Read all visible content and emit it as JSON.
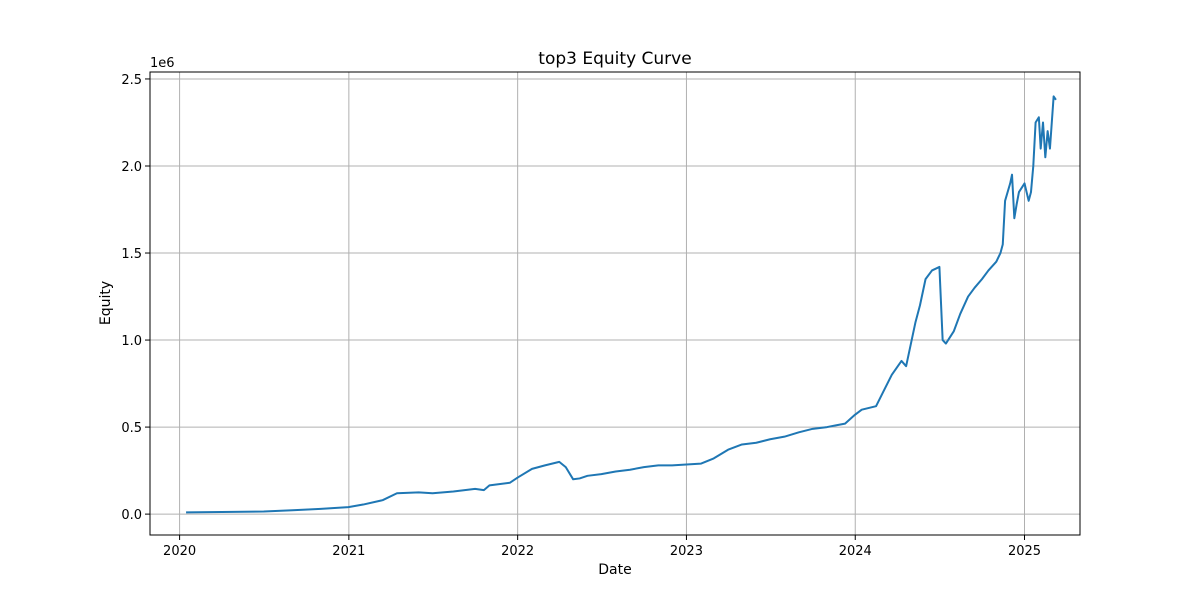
{
  "chart_data": {
    "type": "line",
    "title": "top3 Equity Curve",
    "xlabel": "Date",
    "ylabel": "Equity",
    "y_offset_label": "1e6",
    "x_ticks": [
      "2020",
      "2021",
      "2022",
      "2023",
      "2024",
      "2025"
    ],
    "y_ticks": [
      "0.0",
      "0.5",
      "1.0",
      "1.5",
      "2.0",
      "2.5"
    ],
    "xlim": [
      "2019-10-29",
      "2025-05-01"
    ],
    "ylim": [
      -120000,
      2540000
    ],
    "grid": true,
    "line_color": "#1f77b4",
    "series": [
      {
        "x": [
          "2020-01-15",
          "2020-04-01",
          "2020-07-01",
          "2020-09-01",
          "2020-11-01",
          "2020-12-31",
          "2021-02-01",
          "2021-03-15",
          "2021-04-15",
          "2021-06-01",
          "2021-07-01",
          "2021-08-15",
          "2021-10-01",
          "2021-10-20",
          "2021-11-01",
          "2021-12-15",
          "2022-01-01",
          "2022-02-01",
          "2022-03-01",
          "2022-04-01",
          "2022-04-15",
          "2022-05-01",
          "2022-05-15",
          "2022-06-01",
          "2022-07-01",
          "2022-08-01",
          "2022-09-01",
          "2022-10-01",
          "2022-11-01",
          "2022-12-01",
          "2023-01-01",
          "2023-02-01",
          "2023-03-01",
          "2023-04-01",
          "2023-05-01",
          "2023-06-01",
          "2023-07-01",
          "2023-08-01",
          "2023-09-01",
          "2023-10-01",
          "2023-11-01",
          "2023-11-20",
          "2023-12-10",
          "2023-12-31",
          "2024-01-15",
          "2024-02-15",
          "2024-03-01",
          "2024-03-20",
          "2024-04-10",
          "2024-04-20",
          "2024-05-10",
          "2024-05-20",
          "2024-06-01",
          "2024-06-15",
          "2024-07-01",
          "2024-07-08",
          "2024-07-15",
          "2024-08-01",
          "2024-08-15",
          "2024-09-01",
          "2024-09-15",
          "2024-10-01",
          "2024-10-15",
          "2024-11-01",
          "2024-11-10",
          "2024-11-15",
          "2024-11-20",
          "2024-12-01",
          "2024-12-05",
          "2024-12-10",
          "2024-12-15",
          "2024-12-20",
          "2025-01-01",
          "2025-01-10",
          "2025-01-15",
          "2025-01-20",
          "2025-01-25",
          "2025-02-01",
          "2025-02-05",
          "2025-02-10",
          "2025-02-15",
          "2025-02-20",
          "2025-02-25",
          "2025-03-01",
          "2025-03-05",
          "2025-03-10"
        ],
        "y": [
          10000,
          12000,
          15000,
          22000,
          30000,
          40000,
          55000,
          80000,
          120000,
          125000,
          120000,
          130000,
          145000,
          138000,
          165000,
          180000,
          210000,
          260000,
          280000,
          300000,
          270000,
          200000,
          205000,
          220000,
          230000,
          245000,
          255000,
          270000,
          280000,
          280000,
          285000,
          290000,
          320000,
          370000,
          400000,
          410000,
          430000,
          445000,
          470000,
          490000,
          500000,
          510000,
          520000,
          570000,
          600000,
          620000,
          700000,
          800000,
          880000,
          850000,
          1100000,
          1200000,
          1350000,
          1400000,
          1420000,
          1000000,
          980000,
          1050000,
          1150000,
          1250000,
          1300000,
          1350000,
          1400000,
          1450000,
          1500000,
          1550000,
          1800000,
          1900000,
          1950000,
          1700000,
          1780000,
          1850000,
          1900000,
          1800000,
          1850000,
          2000000,
          2250000,
          2280000,
          2100000,
          2250000,
          2050000,
          2200000,
          2100000,
          2250000,
          2400000,
          2380000
        ]
      }
    ]
  }
}
